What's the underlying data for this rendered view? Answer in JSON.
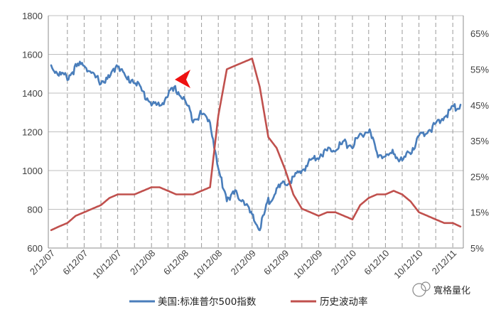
{
  "chart_data": {
    "type": "line",
    "title": "",
    "x_tick_labels": [
      "2/12/07",
      "6/12/07",
      "10/12/07",
      "2/12/08",
      "6/12/08",
      "10/12/08",
      "2/12/09",
      "6/12/09",
      "10/12/09",
      "2/12/10",
      "6/12/10",
      "10/12/10",
      "2/12/11"
    ],
    "y_left": {
      "ticks": [
        "600",
        "800",
        "1000",
        "1200",
        "1400",
        "1600",
        "1800"
      ],
      "ylim": [
        600,
        1800
      ]
    },
    "y_right": {
      "ticks": [
        "5%",
        "15%",
        "25%",
        "35%",
        "45%",
        "55%",
        "65%"
      ],
      "ylim": [
        5,
        70
      ]
    },
    "grid": {
      "horizontal": true,
      "vertical_dashed": true
    },
    "legend_position": "bottom",
    "series": [
      {
        "name": "美国:标准普尔500指数",
        "axis": "left",
        "color": "#4a7ebb",
        "x": [
          "2007-02-12",
          "2007-03-12",
          "2007-04-12",
          "2007-05-12",
          "2007-06-12",
          "2007-07-12",
          "2007-08-12",
          "2007-09-12",
          "2007-10-12",
          "2007-11-12",
          "2007-12-12",
          "2008-01-12",
          "2008-02-12",
          "2008-03-12",
          "2008-04-12",
          "2008-05-12",
          "2008-06-12",
          "2008-07-12",
          "2008-08-12",
          "2008-09-12",
          "2008-10-12",
          "2008-11-12",
          "2008-12-12",
          "2009-01-12",
          "2009-02-12",
          "2009-03-12",
          "2009-04-12",
          "2009-05-12",
          "2009-06-12",
          "2009-07-12",
          "2009-08-12",
          "2009-09-12",
          "2009-10-12",
          "2009-11-12",
          "2009-12-12",
          "2010-01-12",
          "2010-02-12",
          "2010-03-12",
          "2010-04-12",
          "2010-05-12",
          "2010-06-12",
          "2010-07-12",
          "2010-08-12",
          "2010-09-12",
          "2010-10-12",
          "2010-11-12",
          "2010-12-12",
          "2011-01-12",
          "2011-02-12",
          "2011-03-12"
        ],
        "values": [
          1540,
          1500,
          1480,
          1530,
          1555,
          1490,
          1460,
          1475,
          1555,
          1470,
          1470,
          1400,
          1350,
          1330,
          1395,
          1420,
          1360,
          1270,
          1290,
          1260,
          1000,
          860,
          880,
          850,
          760,
          700,
          840,
          900,
          930,
          960,
          1000,
          1050,
          1080,
          1100,
          1120,
          1140,
          1130,
          1180,
          1210,
          1090,
          1070,
          1090,
          1050,
          1100,
          1170,
          1210,
          1230,
          1280,
          1320,
          1340
        ]
      },
      {
        "name": "历史波动率",
        "axis": "right",
        "color": "#c0504d",
        "x": [
          "2007-02-12",
          "2007-03-12",
          "2007-04-12",
          "2007-05-12",
          "2007-06-12",
          "2007-07-12",
          "2007-08-12",
          "2007-09-12",
          "2007-10-12",
          "2007-11-12",
          "2007-12-12",
          "2008-01-12",
          "2008-02-12",
          "2008-03-12",
          "2008-04-12",
          "2008-05-12",
          "2008-06-12",
          "2008-07-12",
          "2008-08-12",
          "2008-09-12",
          "2008-10-12",
          "2008-11-12",
          "2008-12-12",
          "2009-01-12",
          "2009-02-12",
          "2009-03-12",
          "2009-04-12",
          "2009-05-12",
          "2009-06-12",
          "2009-07-12",
          "2009-08-12",
          "2009-09-12",
          "2009-10-12",
          "2009-11-12",
          "2009-12-12",
          "2010-01-12",
          "2010-02-12",
          "2010-03-12",
          "2010-04-12",
          "2010-05-12",
          "2010-06-12",
          "2010-07-12",
          "2010-08-12",
          "2010-09-12",
          "2010-10-12",
          "2010-11-12",
          "2010-12-12",
          "2011-01-12",
          "2011-02-12",
          "2011-03-12"
        ],
        "values": [
          10,
          11,
          12,
          14,
          15,
          16,
          17,
          19,
          20,
          20,
          20,
          21,
          22,
          22,
          21,
          20,
          20,
          20,
          21,
          22,
          42,
          55,
          56,
          57,
          58,
          50,
          36,
          33,
          27,
          20,
          16,
          15,
          14,
          15,
          15,
          14,
          13,
          17,
          19,
          20,
          20,
          21,
          20,
          18,
          15,
          14,
          13,
          12,
          12,
          11
        ]
      }
    ],
    "annotations": [
      {
        "type": "arrow",
        "color": "#ff0000"
      }
    ],
    "watermark": "寬格量化"
  }
}
